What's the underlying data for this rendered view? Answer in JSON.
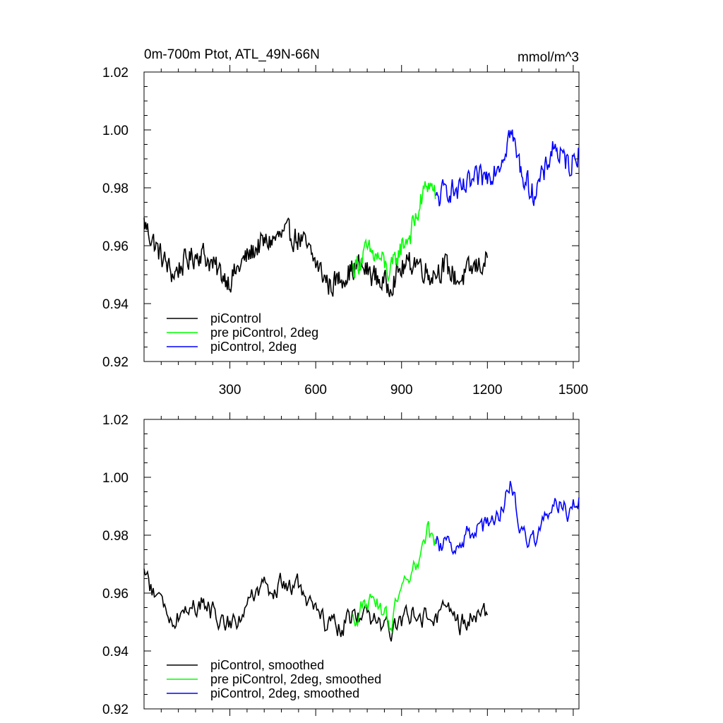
{
  "figure": {
    "title_left": "0m-700m Ptot, ATL_49N-66N",
    "title_right": "mmol/m^3"
  },
  "chart_data": [
    {
      "type": "line",
      "xlim": [
        0,
        1520
      ],
      "ylim": [
        0.92,
        1.02
      ],
      "x_ticks": [
        300,
        600,
        900,
        1200,
        1500
      ],
      "x_tick_labels": [
        "300",
        "600",
        "900",
        "1200",
        "1500"
      ],
      "y_ticks": [
        0.92,
        0.94,
        0.96,
        0.98,
        1.0,
        1.02
      ],
      "y_tick_labels": [
        "0.92",
        "0.94",
        "0.96",
        "0.98",
        "1.00",
        "1.02"
      ],
      "legend_location": "bottom-left",
      "series": [
        {
          "name": "piControl",
          "color": "#000000",
          "x": [
            0,
            50,
            100,
            150,
            200,
            250,
            300,
            350,
            400,
            450,
            500,
            550,
            600,
            650,
            700,
            750,
            800,
            850,
            900,
            950,
            1000,
            1050,
            1100,
            1150,
            1200
          ],
          "y": [
            0.968,
            0.958,
            0.95,
            0.955,
            0.958,
            0.952,
            0.948,
            0.955,
            0.96,
            0.962,
            0.964,
            0.962,
            0.954,
            0.946,
            0.95,
            0.953,
            0.95,
            0.946,
            0.952,
            0.955,
            0.95,
            0.953,
            0.948,
            0.952,
            0.955
          ]
        },
        {
          "name": "pre piControl, 2deg",
          "color": "#00ff00",
          "x": [
            730,
            780,
            830,
            860,
            900,
            930,
            960,
            990,
            1020
          ],
          "y": [
            0.952,
            0.958,
            0.955,
            0.95,
            0.96,
            0.964,
            0.972,
            0.982,
            0.978
          ]
        },
        {
          "name": "piControl, 2deg",
          "color": "#0000ff",
          "x": [
            1020,
            1060,
            1100,
            1150,
            1200,
            1250,
            1280,
            1320,
            1360,
            1400,
            1430,
            1460,
            1490,
            1520
          ],
          "y": [
            0.975,
            0.98,
            0.978,
            0.982,
            0.984,
            0.99,
            1.0,
            0.985,
            0.978,
            0.985,
            0.995,
            0.99,
            0.988,
            0.993
          ]
        }
      ]
    },
    {
      "type": "line",
      "xlim": [
        0,
        1520
      ],
      "ylim": [
        0.92,
        1.02
      ],
      "x_ticks": [
        300,
        600,
        900,
        1200,
        1500
      ],
      "y_ticks": [
        0.92,
        0.94,
        0.96,
        0.98,
        1.0,
        1.02
      ],
      "y_tick_labels": [
        "0.92",
        "0.94",
        "0.96",
        "0.98",
        "1.00",
        "1.02"
      ],
      "legend_location": "bottom-left",
      "series": [
        {
          "name": "piControl, smoothed",
          "color": "#000000",
          "x": [
            0,
            50,
            100,
            150,
            200,
            250,
            300,
            350,
            400,
            450,
            500,
            550,
            600,
            650,
            700,
            750,
            800,
            850,
            900,
            950,
            1000,
            1050,
            1100,
            1150,
            1200
          ],
          "y": [
            0.967,
            0.957,
            0.951,
            0.955,
            0.957,
            0.952,
            0.949,
            0.955,
            0.96,
            0.961,
            0.963,
            0.961,
            0.953,
            0.947,
            0.95,
            0.953,
            0.95,
            0.947,
            0.951,
            0.955,
            0.951,
            0.953,
            0.949,
            0.952,
            0.953
          ]
        },
        {
          "name": "pre piControl, 2deg, smoothed",
          "color": "#00ff00",
          "x": [
            730,
            780,
            830,
            860,
            900,
            930,
            960,
            990,
            1020
          ],
          "y": [
            0.951,
            0.957,
            0.954,
            0.95,
            0.959,
            0.963,
            0.971,
            0.98,
            0.977
          ]
        },
        {
          "name": "piControl, 2deg, smoothed",
          "color": "#0000ff",
          "x": [
            1020,
            1060,
            1100,
            1150,
            1200,
            1250,
            1280,
            1320,
            1360,
            1400,
            1430,
            1460,
            1490,
            1520
          ],
          "y": [
            0.975,
            0.979,
            0.977,
            0.981,
            0.983,
            0.989,
            0.998,
            0.984,
            0.978,
            0.984,
            0.994,
            0.99,
            0.987,
            0.993
          ]
        }
      ]
    }
  ]
}
